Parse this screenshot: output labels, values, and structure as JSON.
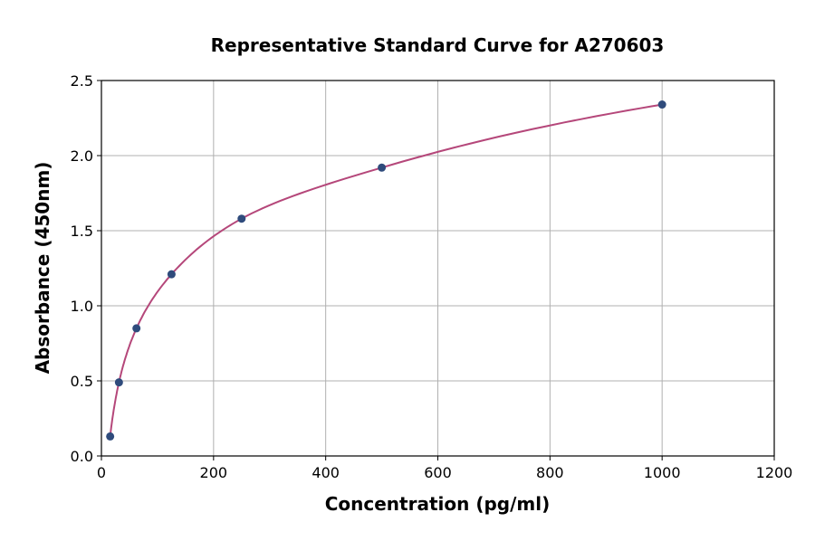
{
  "chart_data": {
    "type": "scatter",
    "title": "Representative Standard Curve for A270603",
    "xlabel": "Concentration (pg/ml)",
    "ylabel": "Absorbance (450nm)",
    "xlim": [
      0,
      1200
    ],
    "ylim": [
      0,
      2.5
    ],
    "xticks": [
      0,
      200,
      400,
      600,
      800,
      1000,
      1200
    ],
    "yticks": [
      "0.0",
      "0.5",
      "1.0",
      "1.5",
      "2.0",
      "2.5"
    ],
    "grid": true,
    "points": [
      {
        "x": 15.6,
        "y": 0.13
      },
      {
        "x": 31.25,
        "y": 0.49
      },
      {
        "x": 62.5,
        "y": 0.85
      },
      {
        "x": 125,
        "y": 1.21
      },
      {
        "x": 250,
        "y": 1.58
      },
      {
        "x": 500,
        "y": 1.92
      },
      {
        "x": 1000,
        "y": 2.34
      }
    ],
    "colors": {
      "points": "#2f4b7c",
      "curve": "#b5477a",
      "grid": "#b0b0b0"
    }
  }
}
